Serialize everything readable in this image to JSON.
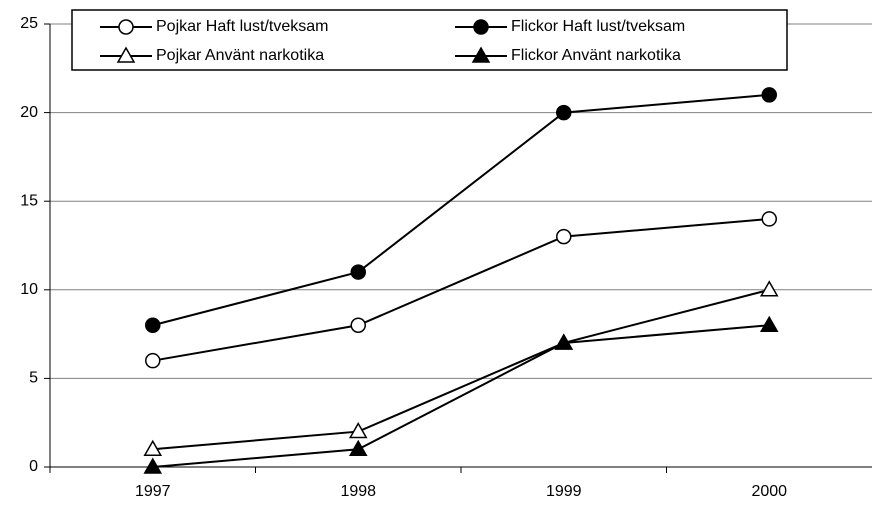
{
  "chart_data": {
    "type": "line",
    "categories": [
      "1997",
      "1998",
      "1999",
      "2000"
    ],
    "series": [
      {
        "name": "Pojkar Haft lust/tveksam",
        "color": "#000000",
        "marker": "circle",
        "filled": false,
        "values": [
          6,
          8,
          13,
          14
        ]
      },
      {
        "name": "Flickor Haft lust/tveksam",
        "color": "#000000",
        "marker": "circle",
        "filled": true,
        "values": [
          8,
          11,
          20,
          21
        ]
      },
      {
        "name": "Pojkar Använt narkotika",
        "color": "#000000",
        "marker": "triangle",
        "filled": false,
        "values": [
          1,
          2,
          7,
          10
        ]
      },
      {
        "name": "Flickor Använt narkotika",
        "color": "#000000",
        "marker": "triangle",
        "filled": true,
        "values": [
          0,
          1,
          7,
          8
        ]
      }
    ],
    "ylim": [
      0,
      25
    ],
    "yticks": [
      0,
      5,
      10,
      15,
      20,
      25
    ],
    "grid": true,
    "legend": "top"
  }
}
